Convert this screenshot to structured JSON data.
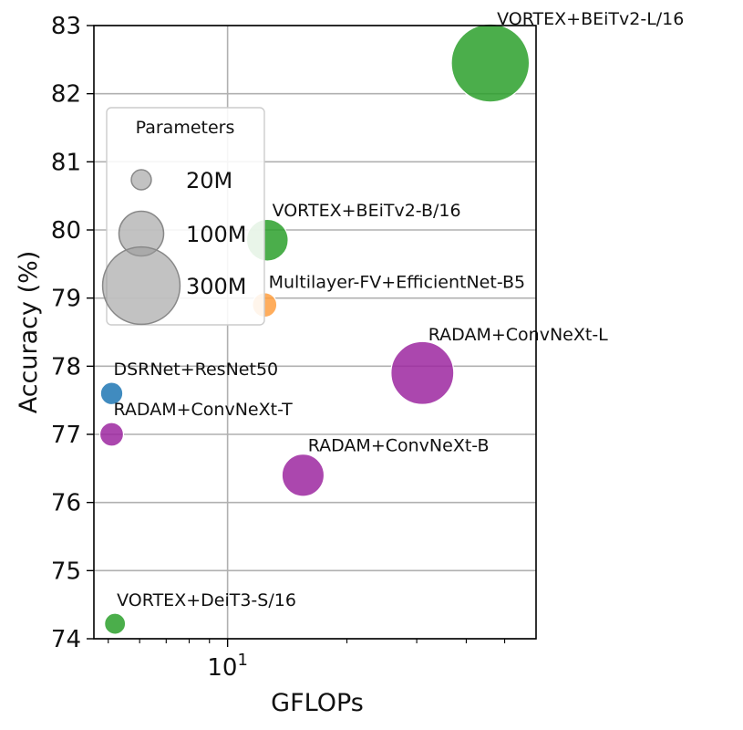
{
  "chart_data": {
    "type": "scatter",
    "xscale": "log",
    "xlabel": "GFLOPs",
    "ylabel": "Accuracy (%)",
    "xlim": [
      4.6,
      60
    ],
    "ylim": [
      74,
      83
    ],
    "grid": true,
    "x_major_tick": {
      "value": 10,
      "label": "10",
      "superscript": "1"
    },
    "y_ticks": [
      74,
      75,
      76,
      77,
      78,
      79,
      80,
      81,
      82,
      83
    ],
    "colors": {
      "vortex": "#2ca02c",
      "radam": "#9c27a0",
      "dsrnet": "#1f77b4",
      "multilayer": "#ff9f40",
      "legend": "#999999"
    },
    "legend": {
      "title": "Parameters",
      "placement": "left",
      "entries": [
        {
          "label": "20M",
          "params_m": 20
        },
        {
          "label": "100M",
          "params_m": 100
        },
        {
          "label": "300M",
          "params_m": 300
        }
      ]
    },
    "points": [
      {
        "name": "VORTEX+BEiTv2-L/16",
        "gflops": 46,
        "accuracy": 82.45,
        "params_m": 305,
        "group": "vortex",
        "label_pos": "right-up"
      },
      {
        "name": "VORTEX+BEiTv2-B/16",
        "gflops": 12.6,
        "accuracy": 79.85,
        "params_m": 87,
        "group": "vortex",
        "label_pos": "right-up"
      },
      {
        "name": "Multilayer-FV+EfficientNet-B5",
        "gflops": 12.4,
        "accuracy": 78.9,
        "params_m": 30,
        "group": "multilayer",
        "label_pos": "right-up"
      },
      {
        "name": "RADAM+ConvNeXt-L",
        "gflops": 31,
        "accuracy": 77.9,
        "params_m": 198,
        "group": "radam",
        "label_pos": "right-up"
      },
      {
        "name": "DSRNet+ResNet50",
        "gflops": 5.1,
        "accuracy": 77.6,
        "params_m": 25,
        "group": "dsrnet",
        "label_pos": "right-up"
      },
      {
        "name": "RADAM+ConvNeXt-T",
        "gflops": 5.1,
        "accuracy": 77.0,
        "params_m": 28,
        "group": "radam",
        "label_pos": "right-up"
      },
      {
        "name": "RADAM+ConvNeXt-B",
        "gflops": 15.5,
        "accuracy": 76.4,
        "params_m": 89,
        "group": "radam",
        "label_pos": "right-up"
      },
      {
        "name": "VORTEX+DeiT3-S/16",
        "gflops": 5.2,
        "accuracy": 74.22,
        "params_m": 22,
        "group": "vortex",
        "label_pos": "right-up"
      }
    ]
  }
}
